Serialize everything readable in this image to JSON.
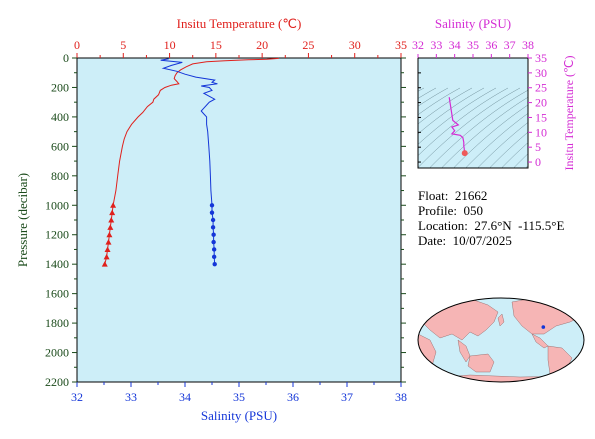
{
  "chart_data": [
    {
      "type": "line",
      "top_axis_label": "Insitu Temperature (℃)",
      "xlabel": "Salinity (PSU)",
      "ylabel": "Pressure (decibar)",
      "temperature_range": [
        0,
        35
      ],
      "temperature_ticks": [
        "0",
        "5",
        "10",
        "15",
        "20",
        "25",
        "30",
        "35"
      ],
      "salinity_range": [
        32,
        38
      ],
      "salinity_ticks": [
        "32",
        "33",
        "34",
        "35",
        "36",
        "37",
        "38"
      ],
      "pressure_range": [
        0,
        2200
      ],
      "pressure_ticks": [
        "0",
        "200",
        "400",
        "600",
        "800",
        "1000",
        "1200",
        "1400",
        "1600",
        "1800",
        "2000",
        "2200"
      ],
      "colors": {
        "temperature": "#e0201c",
        "salinity": "#1436d8",
        "background": "#cdeef8"
      },
      "series": [
        {
          "key": "temperature",
          "pressure": [
            3,
            8,
            12,
            18,
            25,
            40,
            60,
            80,
            100,
            120,
            140,
            160,
            175,
            185,
            200,
            220,
            250,
            280,
            300,
            330,
            370,
            400,
            450,
            500,
            550,
            600,
            700,
            800,
            900,
            1000,
            1050,
            1100,
            1150,
            1200,
            1250,
            1300,
            1350,
            1400
          ],
          "values": [
            21.8,
            20.5,
            18.5,
            16.0,
            14.0,
            12.5,
            11.8,
            11.2,
            10.8,
            10.6,
            10.5,
            10.8,
            11.0,
            10.2,
            9.5,
            9.0,
            8.8,
            8.3,
            8.2,
            7.6,
            7.1,
            6.6,
            5.9,
            5.4,
            5.1,
            4.9,
            4.6,
            4.4,
            4.2,
            3.9,
            3.8,
            3.7,
            3.6,
            3.5,
            3.4,
            3.3,
            3.2,
            3.0
          ],
          "marker_pressure": [
            1000,
            1050,
            1100,
            1150,
            1200,
            1250,
            1300,
            1350,
            1400
          ]
        },
        {
          "key": "salinity",
          "pressure": [
            5,
            15,
            30,
            50,
            70,
            90,
            110,
            130,
            150,
            165,
            175,
            180,
            190,
            200,
            220,
            240,
            260,
            280,
            300,
            320,
            340,
            360,
            380,
            400,
            450,
            500,
            600,
            700,
            800,
            900,
            1000,
            1050,
            1100,
            1150,
            1200,
            1250,
            1300,
            1350,
            1400
          ],
          "values": [
            33.7,
            33.55,
            33.95,
            33.75,
            33.6,
            33.85,
            34.0,
            34.2,
            34.55,
            34.5,
            34.6,
            34.5,
            34.3,
            34.45,
            34.5,
            34.35,
            34.45,
            34.55,
            34.45,
            34.4,
            34.35,
            34.3,
            34.35,
            34.4,
            34.4,
            34.42,
            34.44,
            34.46,
            34.47,
            34.48,
            34.5,
            34.5,
            34.52,
            34.52,
            34.53,
            34.53,
            34.54,
            34.54,
            34.55
          ],
          "marker_pressure": [
            1000,
            1050,
            1100,
            1150,
            1200,
            1250,
            1300,
            1350,
            1400
          ]
        }
      ]
    },
    {
      "type": "scatter",
      "title": "Salinity (PSU)",
      "ylabel": "Insitu Temperature (℃)",
      "xlim": [
        32,
        38
      ],
      "ylim": [
        -2,
        35
      ],
      "x_ticks": [
        "32",
        "33",
        "34",
        "35",
        "36",
        "37",
        "38"
      ],
      "y_ticks": [
        "0",
        "5",
        "10",
        "15",
        "20",
        "25",
        "30",
        "35"
      ],
      "colors": {
        "line": "#d42cd4",
        "marker": "#ee5a5a",
        "isopycnal": "#6f8f9a",
        "background": "#cdeef8"
      },
      "x": [
        33.7,
        33.9,
        34.2,
        33.85,
        34.0,
        33.85,
        34.3,
        34.45,
        34.5,
        34.5,
        34.52,
        34.53,
        34.55
      ],
      "y": [
        21.8,
        14.0,
        12.5,
        11.8,
        10.5,
        9.5,
        9.0,
        8.2,
        6.6,
        5.4,
        4.6,
        3.9,
        3.0
      ]
    }
  ],
  "info": {
    "float": "Float:  21662",
    "profile": "Profile:  050",
    "location": "Location:  27.6°N  -115.5°E",
    "date": "Date:  10/07/2025"
  },
  "map": {
    "colors": {
      "ocean": "#cdeef8",
      "land": "#f6b5b5",
      "marker": "#1436d8"
    },
    "float_lon": -115.5,
    "float_lat": 27.6
  }
}
